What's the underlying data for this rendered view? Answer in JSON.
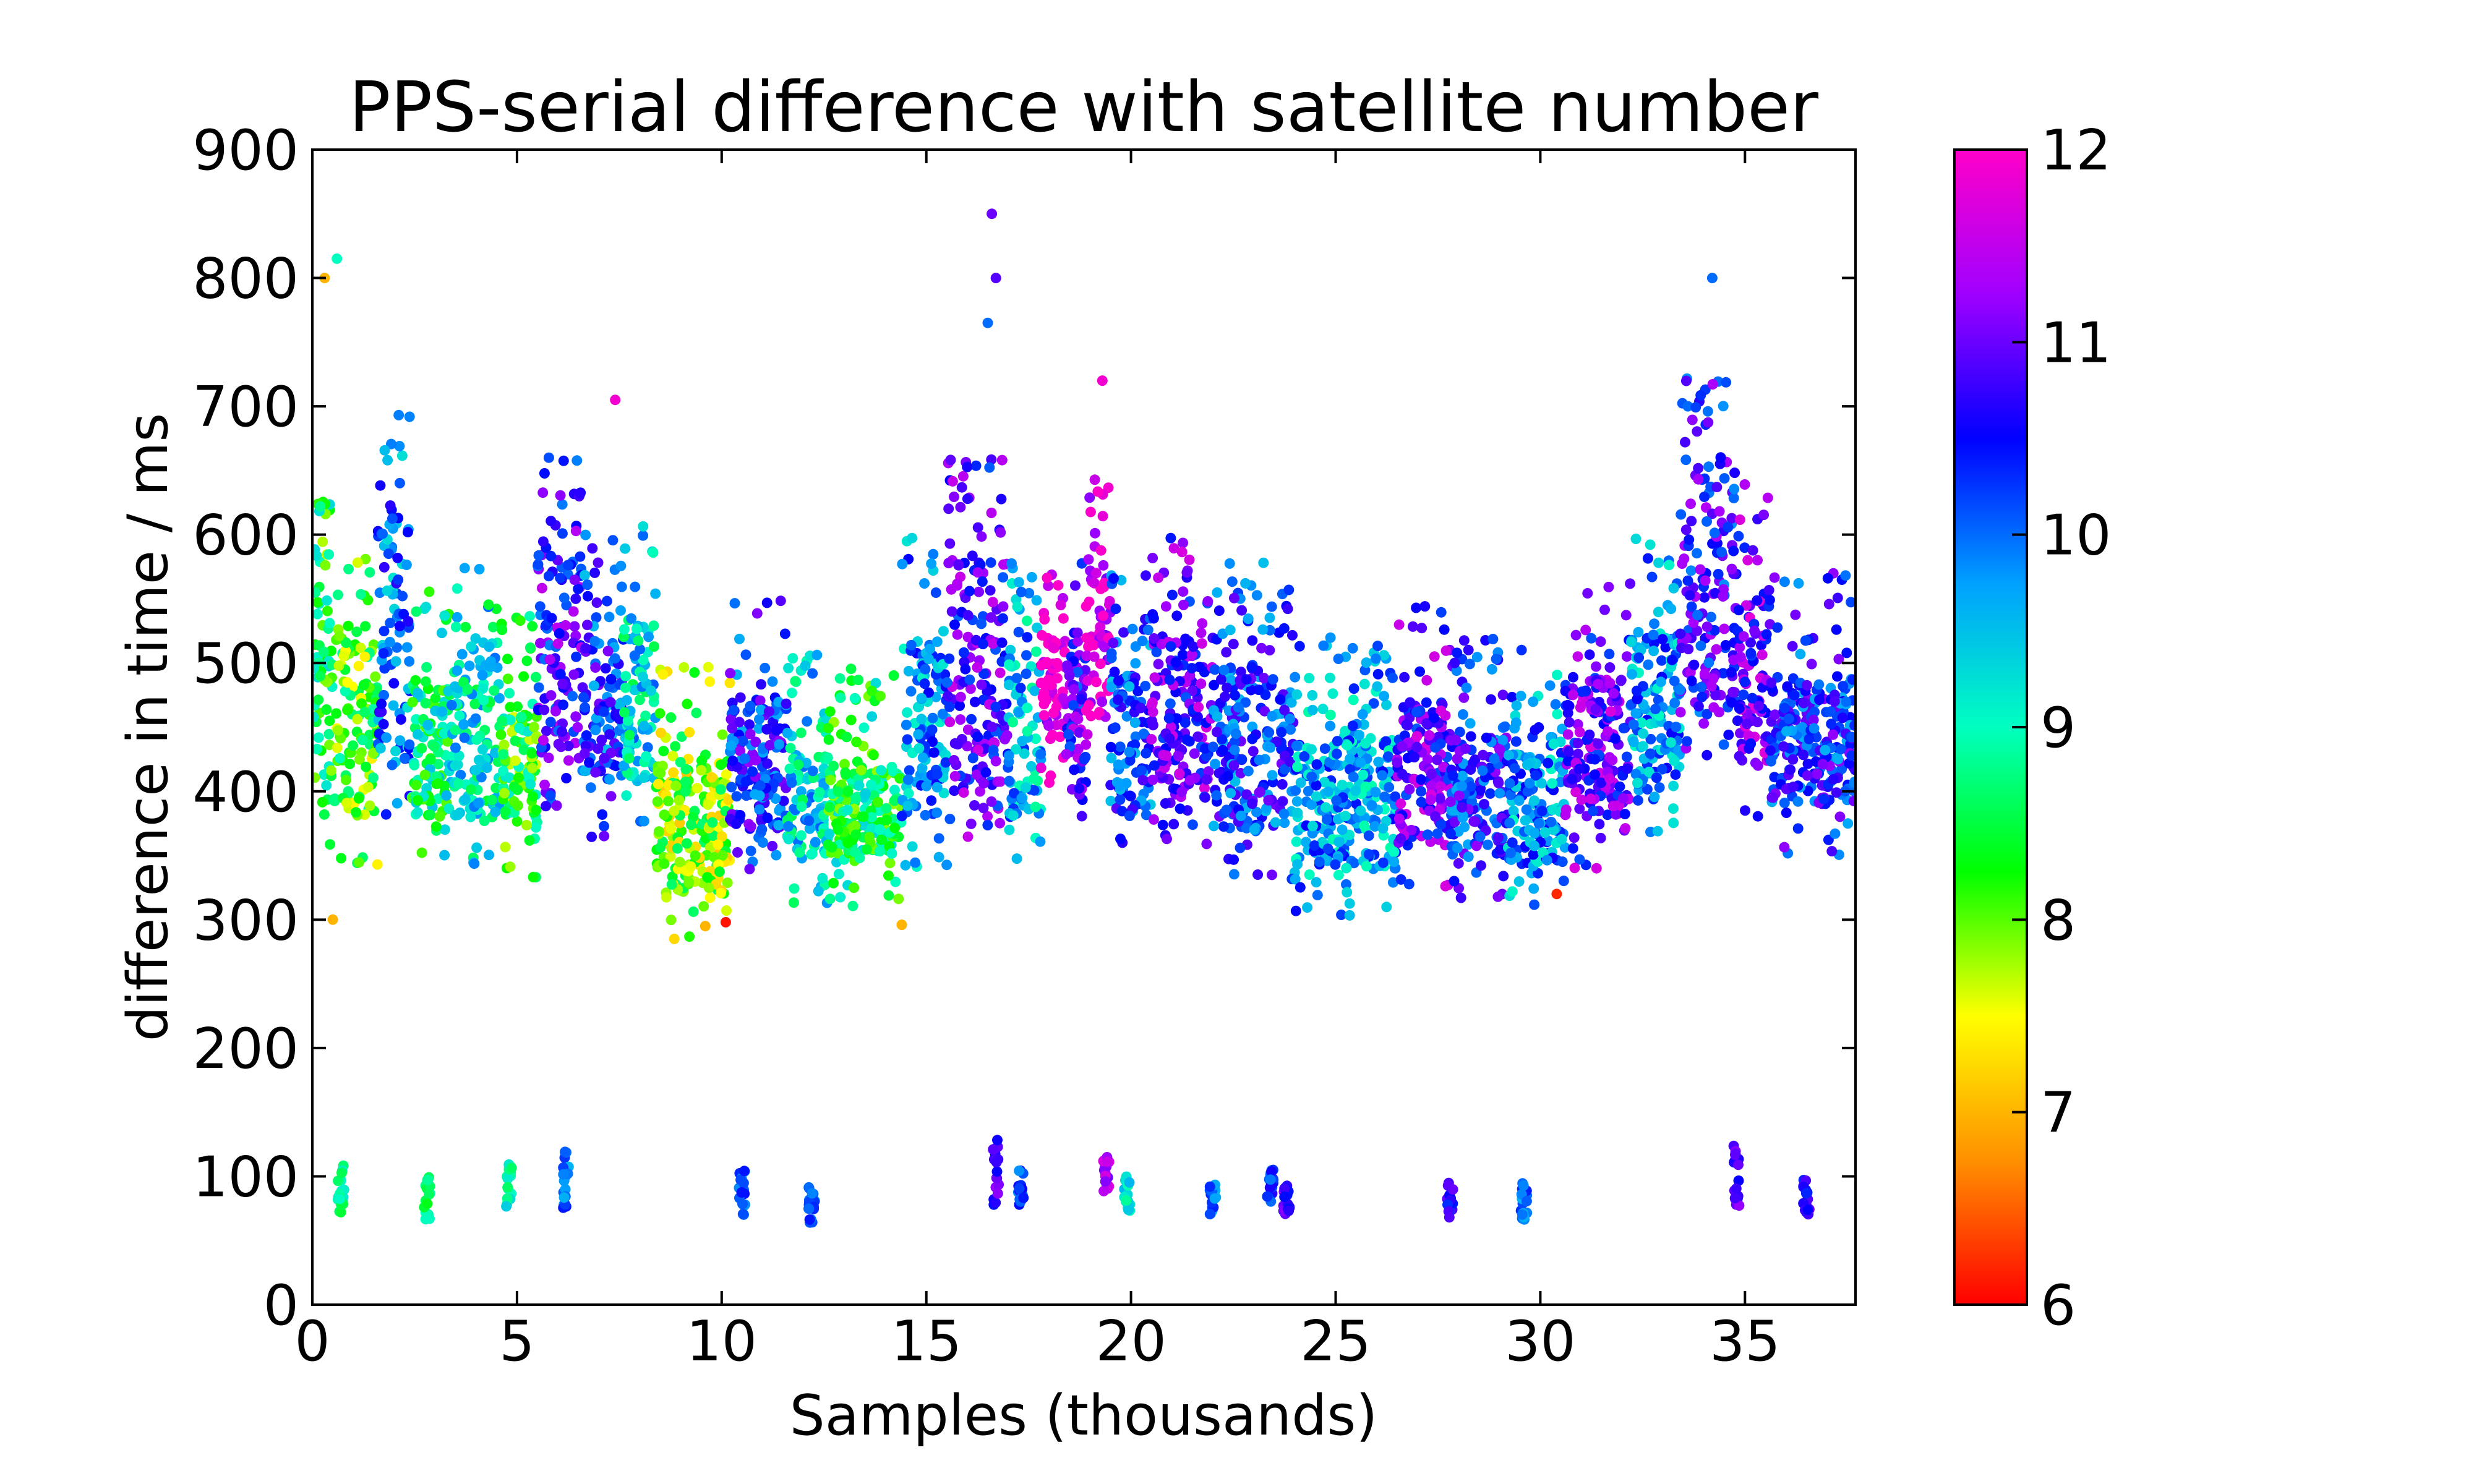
{
  "chart_data": {
    "type": "scatter",
    "title": "PPS-serial difference with satellite number",
    "xlabel": "Samples (thousands)",
    "ylabel": "difference in time / ms",
    "xlim": [
      0,
      37.7
    ],
    "ylim": [
      0,
      900
    ],
    "xticks": [
      "0",
      "5",
      "10",
      "15",
      "20",
      "25",
      "30",
      "35"
    ],
    "yticks": [
      "0",
      "100",
      "200",
      "300",
      "400",
      "500",
      "600",
      "700",
      "800",
      "900"
    ],
    "grid": false,
    "legend": "none",
    "colorbar": {
      "range": [
        6,
        12
      ],
      "ticks": [
        "6",
        "7",
        "8",
        "9",
        "10",
        "11",
        "12"
      ],
      "colormap": "gist_rainbow",
      "colors": [
        "#ff0000",
        "#ff9000",
        "#ffff00",
        "#00ff00",
        "#00ffc0",
        "#00a0ff",
        "#0000ff",
        "#a000ff",
        "#ff00c8"
      ]
    },
    "segments": [
      {
        "x": [
          0,
          0.6
        ],
        "y": [
          390,
          560
        ],
        "sats": 8.5
      },
      {
        "x": [
          0.6,
          1.6
        ],
        "y": [
          380,
          520
        ],
        "sats": 8.2
      },
      {
        "x": [
          1.6,
          2.4
        ],
        "y": [
          420,
          620
        ],
        "sats": 10.0
      },
      {
        "x": [
          2.4,
          3.4
        ],
        "y": [
          380,
          480
        ],
        "sats": 8.8
      },
      {
        "x": [
          3.4,
          4.6
        ],
        "y": [
          380,
          500
        ],
        "sats": 9.2
      },
      {
        "x": [
          4.6,
          5.5
        ],
        "y": [
          360,
          460
        ],
        "sats": 8.4
      },
      {
        "x": [
          5.5,
          6.6
        ],
        "y": [
          420,
          580
        ],
        "sats": 10.7
      },
      {
        "x": [
          6.6,
          7.6
        ],
        "y": [
          400,
          520
        ],
        "sats": 10.3
      },
      {
        "x": [
          7.6,
          8.4
        ],
        "y": [
          410,
          530
        ],
        "sats": 9.3
      },
      {
        "x": [
          8.4,
          10.2
        ],
        "y": [
          320,
          420
        ],
        "sats": 7.9
      },
      {
        "x": [
          10.2,
          11.6
        ],
        "y": [
          370,
          470
        ],
        "sats": 10.4
      },
      {
        "x": [
          11.6,
          12.6
        ],
        "y": [
          350,
          430
        ],
        "sats": 9.3
      },
      {
        "x": [
          12.6,
          14.4
        ],
        "y": [
          350,
          420
        ],
        "sats": 8.6
      },
      {
        "x": [
          14.4,
          15.5
        ],
        "y": [
          380,
          520
        ],
        "sats": 9.8
      },
      {
        "x": [
          15.5,
          17.0
        ],
        "y": [
          400,
          580
        ],
        "sats": 10.8
      },
      {
        "x": [
          17.0,
          17.8
        ],
        "y": [
          380,
          500
        ],
        "sats": 9.6
      },
      {
        "x": [
          17.8,
          18.4
        ],
        "y": [
          440,
          520
        ],
        "sats": 11.9
      },
      {
        "x": [
          18.4,
          18.9
        ],
        "y": [
          400,
          500
        ],
        "sats": 10.8
      },
      {
        "x": [
          18.9,
          19.5
        ],
        "y": [
          460,
          580
        ],
        "sats": 11.8
      },
      {
        "x": [
          19.5,
          20.5
        ],
        "y": [
          380,
          490
        ],
        "sats": 10.2
      },
      {
        "x": [
          20.5,
          22.0
        ],
        "y": [
          390,
          520
        ],
        "sats": 10.9
      },
      {
        "x": [
          22.0,
          24.0
        ],
        "y": [
          370,
          500
        ],
        "sats": 10.3
      },
      {
        "x": [
          24.0,
          26.5
        ],
        "y": [
          340,
          440
        ],
        "sats": 9.7
      },
      {
        "x": [
          26.5,
          27.8
        ],
        "y": [
          360,
          470
        ],
        "sats": 10.9
      },
      {
        "x": [
          27.8,
          29.2
        ],
        "y": [
          350,
          440
        ],
        "sats": 10.4
      },
      {
        "x": [
          29.2,
          30.6
        ],
        "y": [
          340,
          440
        ],
        "sats": 9.8
      },
      {
        "x": [
          30.6,
          32.2
        ],
        "y": [
          380,
          490
        ],
        "sats": 10.9
      },
      {
        "x": [
          32.2,
          33.4
        ],
        "y": [
          400,
          520
        ],
        "sats": 9.8
      },
      {
        "x": [
          33.4,
          34.8
        ],
        "y": [
          460,
          650
        ],
        "sats": 10.6
      },
      {
        "x": [
          34.8,
          35.6
        ],
        "y": [
          420,
          560
        ],
        "sats": 11.0
      },
      {
        "x": [
          35.6,
          37.7
        ],
        "y": [
          390,
          490
        ],
        "sats": 10.4
      }
    ],
    "clusters": [
      {
        "x": 0.7,
        "y": [
          70,
          110
        ],
        "sats": 8.8
      },
      {
        "x": 2.8,
        "y": [
          65,
          100
        ],
        "sats": 8.7
      },
      {
        "x": 4.8,
        "y": [
          75,
          110
        ],
        "sats": 9.0
      },
      {
        "x": 6.2,
        "y": [
          75,
          120
        ],
        "sats": 10.0
      },
      {
        "x": 10.5,
        "y": [
          70,
          105
        ],
        "sats": 10.1
      },
      {
        "x": 12.2,
        "y": [
          60,
          95
        ],
        "sats": 10.0
      },
      {
        "x": 16.7,
        "y": [
          75,
          130
        ],
        "sats": 10.8
      },
      {
        "x": 17.3,
        "y": [
          75,
          105
        ],
        "sats": 10.2
      },
      {
        "x": 19.4,
        "y": [
          85,
          115
        ],
        "sats": 11.4
      },
      {
        "x": 19.9,
        "y": [
          70,
          100
        ],
        "sats": 9.2
      },
      {
        "x": 22.0,
        "y": [
          70,
          95
        ],
        "sats": 10.0
      },
      {
        "x": 23.4,
        "y": [
          80,
          105
        ],
        "sats": 10.3
      },
      {
        "x": 23.8,
        "y": [
          70,
          95
        ],
        "sats": 10.8
      },
      {
        "x": 27.8,
        "y": [
          65,
          95
        ],
        "sats": 10.6
      },
      {
        "x": 29.6,
        "y": [
          65,
          95
        ],
        "sats": 10.0
      },
      {
        "x": 34.8,
        "y": [
          75,
          125
        ],
        "sats": 10.9
      },
      {
        "x": 36.5,
        "y": [
          70,
          100
        ],
        "sats": 10.7
      }
    ],
    "outliers": [
      {
        "x": 0.3,
        "y": 800,
        "sats": 7.0
      },
      {
        "x": 0.6,
        "y": 815,
        "sats": 9.0
      },
      {
        "x": 0.5,
        "y": 300,
        "sats": 7.0
      },
      {
        "x": 7.4,
        "y": 705,
        "sats": 11.9
      },
      {
        "x": 16.6,
        "y": 850,
        "sats": 11.0
      },
      {
        "x": 16.7,
        "y": 800,
        "sats": 10.9
      },
      {
        "x": 16.5,
        "y": 765,
        "sats": 10.0
      },
      {
        "x": 19.3,
        "y": 720,
        "sats": 11.9
      },
      {
        "x": 34.2,
        "y": 800,
        "sats": 10.0
      },
      {
        "x": 10.1,
        "y": 298,
        "sats": 6.1
      },
      {
        "x": 30.4,
        "y": 320,
        "sats": 6.2
      },
      {
        "x": 9.6,
        "y": 295,
        "sats": 7.0
      },
      {
        "x": 14.4,
        "y": 296,
        "sats": 7.0
      }
    ]
  }
}
